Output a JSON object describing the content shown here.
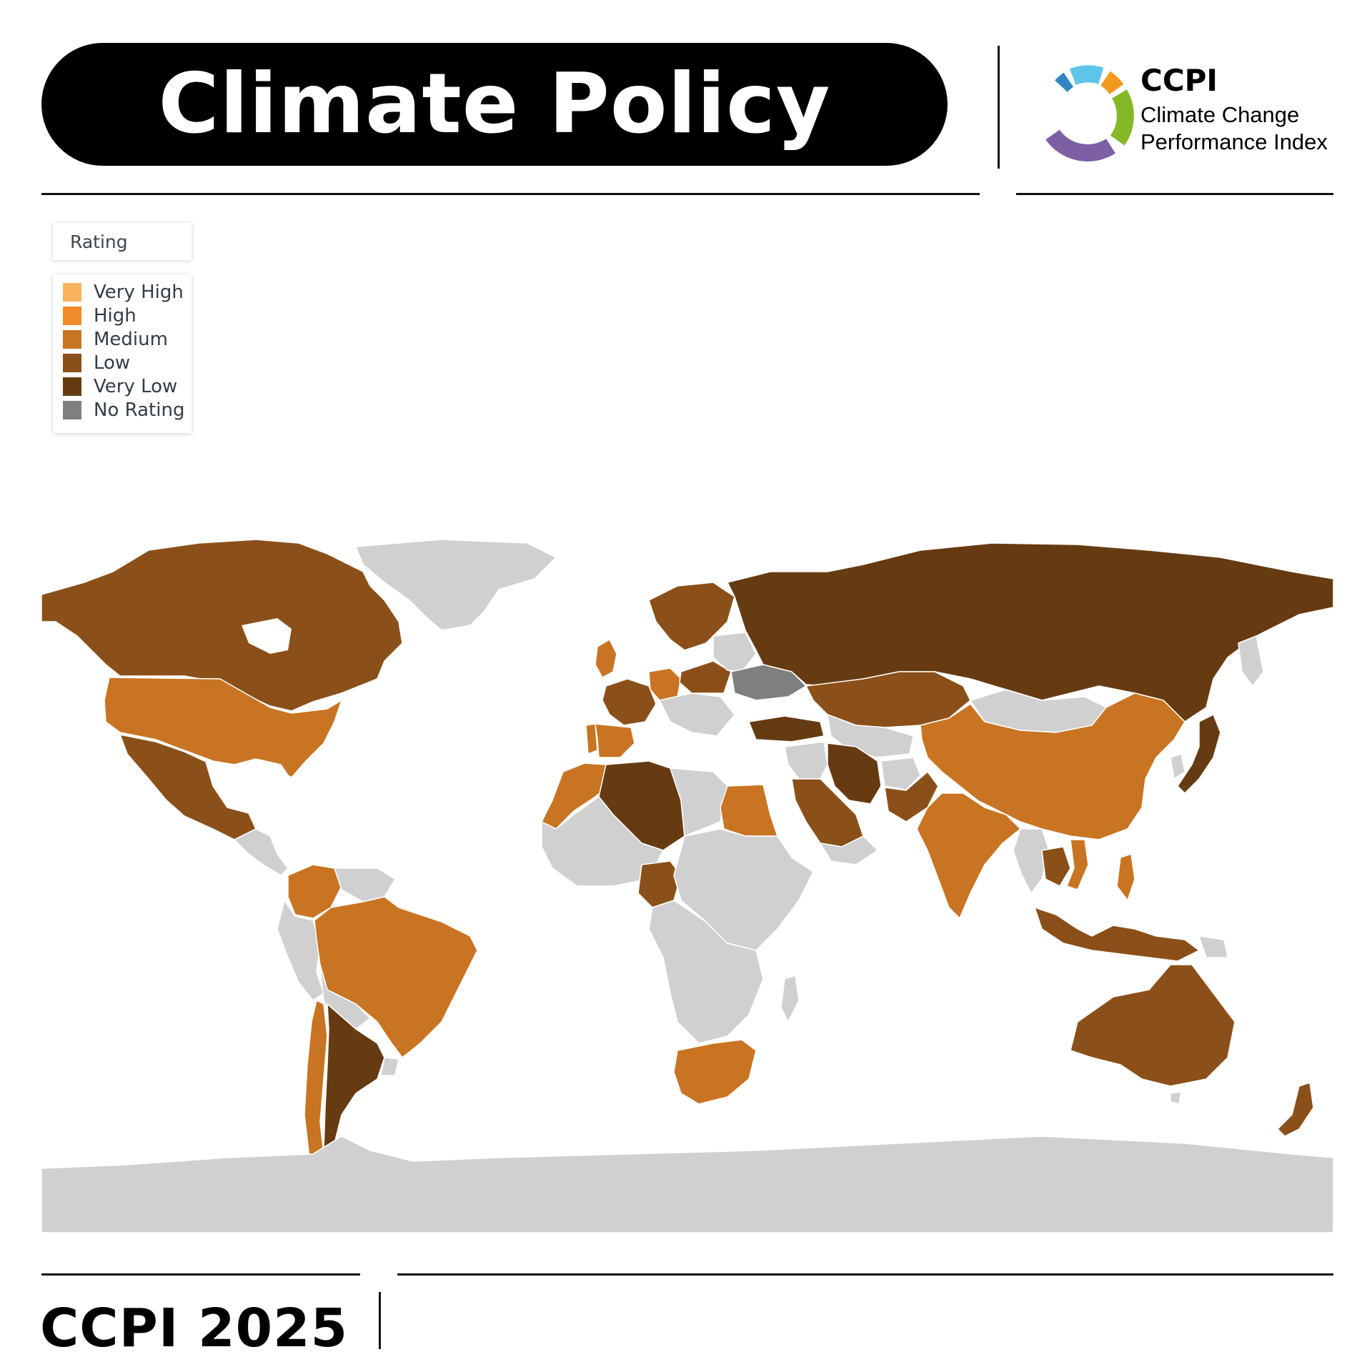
{
  "header": {
    "title": "Climate Policy"
  },
  "logo": {
    "abbr": "CCPI",
    "name_line1": "Climate Change",
    "name_line2": "Performance Index",
    "segment_colors": [
      "#2f86c6",
      "#5ec4e9",
      "#f39a1d",
      "#84b829",
      "#7d5fa3"
    ]
  },
  "legend": {
    "title": "Rating",
    "items": [
      {
        "label": "Very High",
        "color": "#f9b35a"
      },
      {
        "label": "High",
        "color": "#f18b27"
      },
      {
        "label": "Medium",
        "color": "#c97422"
      },
      {
        "label": "Low",
        "color": "#8b5019"
      },
      {
        "label": "Very Low",
        "color": "#673b12"
      },
      {
        "label": "No Rating",
        "color": "#7f7f7f"
      }
    ]
  },
  "map": {
    "no_data_color": "#d0d0d0",
    "regions": [
      {
        "name": "Canada",
        "rating": "Low"
      },
      {
        "name": "United States",
        "rating": "Medium"
      },
      {
        "name": "Mexico",
        "rating": "Low"
      },
      {
        "name": "Greenland",
        "rating": "none"
      },
      {
        "name": "Colombia",
        "rating": "Medium"
      },
      {
        "name": "Brazil",
        "rating": "Medium"
      },
      {
        "name": "Chile",
        "rating": "Medium"
      },
      {
        "name": "Argentina",
        "rating": "Very Low"
      },
      {
        "name": "Uruguay",
        "rating": "none"
      },
      {
        "name": "United Kingdom",
        "rating": "Medium"
      },
      {
        "name": "Portugal",
        "rating": "Medium"
      },
      {
        "name": "Spain",
        "rating": "Medium"
      },
      {
        "name": "France",
        "rating": "Low"
      },
      {
        "name": "Germany",
        "rating": "Medium"
      },
      {
        "name": "Scandinavia",
        "rating": "Low"
      },
      {
        "name": "Poland",
        "rating": "Low"
      },
      {
        "name": "Ukraine",
        "rating": "No Rating"
      },
      {
        "name": "Russia",
        "rating": "Very Low"
      },
      {
        "name": "Kazakhstan",
        "rating": "Low"
      },
      {
        "name": "Turkey",
        "rating": "Very Low"
      },
      {
        "name": "Morocco",
        "rating": "Medium"
      },
      {
        "name": "Algeria",
        "rating": "Very Low"
      },
      {
        "name": "Egypt",
        "rating": "Medium"
      },
      {
        "name": "Nigeria",
        "rating": "Low"
      },
      {
        "name": "South Africa",
        "rating": "Medium"
      },
      {
        "name": "Saudi Arabia",
        "rating": "Low"
      },
      {
        "name": "Iran",
        "rating": "Very Low"
      },
      {
        "name": "Pakistan",
        "rating": "Low"
      },
      {
        "name": "India",
        "rating": "Medium"
      },
      {
        "name": "China",
        "rating": "Medium"
      },
      {
        "name": "Mongolia",
        "rating": "none"
      },
      {
        "name": "South Korea",
        "rating": "Very Low"
      },
      {
        "name": "Japan",
        "rating": "Very Low"
      },
      {
        "name": "Thailand",
        "rating": "Low"
      },
      {
        "name": "Vietnam",
        "rating": "Medium"
      },
      {
        "name": "Philippines",
        "rating": "Medium"
      },
      {
        "name": "Indonesia",
        "rating": "Low"
      },
      {
        "name": "Australia",
        "rating": "Low"
      },
      {
        "name": "New Zealand",
        "rating": "Low"
      },
      {
        "name": "Antarctica",
        "rating": "none"
      }
    ]
  },
  "footer": {
    "text": "CCPI 2025"
  }
}
